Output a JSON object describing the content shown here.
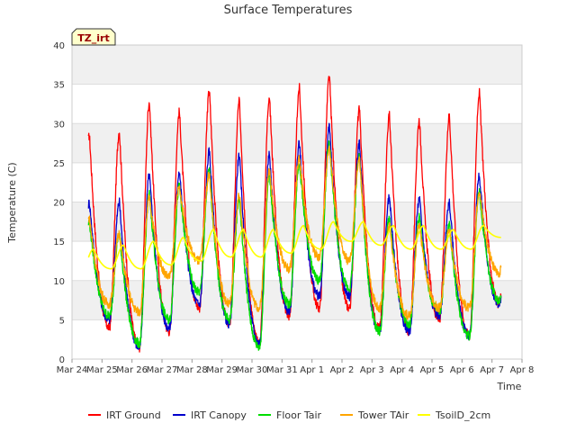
{
  "chart_data": {
    "type": "line",
    "title": "Surface Temperatures",
    "xlabel": "Time",
    "ylabel": "Temperature (C)",
    "ylim": [
      0,
      40
    ],
    "yticks": [
      0,
      5,
      10,
      15,
      20,
      25,
      30,
      35,
      40
    ],
    "xlim_days": [
      0,
      15
    ],
    "xtick_labels": [
      "Mar 24",
      "Mar 25",
      "Mar 26",
      "Mar 27",
      "Mar 28",
      "Mar 29",
      "Mar 30",
      "Mar 31",
      "Apr 1",
      "Apr 2",
      "Apr 3",
      "Apr 4",
      "Apr 5",
      "Apr 6",
      "Apr 7",
      "Apr 8"
    ],
    "annotation": "TZ_irt",
    "grid": true,
    "legend_position": "bottom",
    "series": [
      {
        "name": "IRT Ground",
        "color": "#ff0000",
        "mins": [
          1.0,
          4.0,
          1.5,
          3.5,
          6.5,
          4.5,
          2.0,
          5.5,
          6.5,
          6.5,
          4.0,
          3.5,
          5.0,
          3.0,
          7.0
        ],
        "maxs": [
          28.5,
          29.0,
          32.8,
          31.5,
          34.2,
          32.8,
          33.5,
          34.5,
          36.0,
          31.8,
          31.0,
          30.5,
          31.0,
          34.0
        ]
      },
      {
        "name": "IRT Canopy",
        "color": "#0000cc",
        "mins": [
          1.5,
          5.0,
          1.5,
          4.0,
          7.0,
          4.5,
          2.0,
          6.0,
          8.0,
          8.0,
          3.5,
          3.5,
          5.5,
          3.0,
          7.0
        ],
        "maxs": [
          20.0,
          20.0,
          23.5,
          24.0,
          26.5,
          26.0,
          26.0,
          27.5,
          29.5,
          27.5,
          20.5,
          20.5,
          20.0,
          23.5
        ]
      },
      {
        "name": "Floor Tair",
        "color": "#00dd00",
        "mins": [
          3.0,
          5.5,
          2.0,
          5.0,
          8.5,
          5.0,
          1.5,
          7.0,
          10.0,
          9.0,
          3.5,
          4.5,
          6.0,
          3.0,
          7.5
        ],
        "maxs": [
          17.5,
          16.0,
          21.0,
          22.0,
          24.0,
          20.5,
          23.5,
          25.0,
          27.5,
          26.0,
          18.0,
          18.0,
          17.0,
          21.5
        ]
      },
      {
        "name": "Tower TAir",
        "color": "#ffa500",
        "mins": [
          6.5,
          7.0,
          6.0,
          10.5,
          12.5,
          7.0,
          6.5,
          11.5,
          13.0,
          12.5,
          6.5,
          5.5,
          6.5,
          6.5,
          11.0
        ],
        "maxs": [
          18.0,
          16.0,
          20.5,
          22.0,
          23.5,
          21.0,
          24.0,
          25.5,
          27.0,
          25.5,
          17.0,
          17.0,
          16.5,
          21.5
        ]
      },
      {
        "name": "TsoilD_2cm",
        "color": "#ffff00",
        "mins": [
          11.0,
          11.5,
          11.5,
          12.0,
          12.5,
          13.0,
          13.0,
          13.5,
          14.0,
          15.0,
          14.5,
          14.0,
          14.0,
          14.0,
          15.5
        ],
        "maxs": [
          14.0,
          14.5,
          15.0,
          15.5,
          16.5,
          16.5,
          16.5,
          17.0,
          17.5,
          17.5,
          17.0,
          17.0,
          16.5,
          17.0
        ]
      }
    ]
  }
}
